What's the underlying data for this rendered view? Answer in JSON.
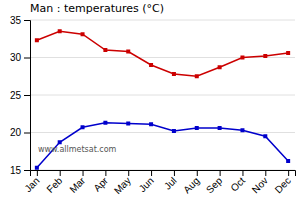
{
  "chart_data": {
    "type": "line",
    "title": "Man : temperatures (°C)",
    "categories": [
      "Jan",
      "Feb",
      "Mar",
      "Apr",
      "May",
      "Jun",
      "Jul",
      "Aug",
      "Sep",
      "Oct",
      "Nov",
      "Dec"
    ],
    "series": [
      {
        "color": "#cc0000",
        "marker": "square",
        "values": [
          32.3,
          33.5,
          33.1,
          31.0,
          30.8,
          29.0,
          27.8,
          27.5,
          28.7,
          30.0,
          30.2,
          30.6
        ]
      },
      {
        "color": "#0000cc",
        "marker": "square",
        "values": [
          15.3,
          18.7,
          20.7,
          21.3,
          21.2,
          21.1,
          20.2,
          20.6,
          20.6,
          20.3,
          19.5,
          16.2
        ]
      }
    ],
    "ylim": [
      15,
      35
    ],
    "yticks": [
      15,
      20,
      25,
      30,
      35
    ],
    "grid": true,
    "annotation": "www.allmetsat.com"
  }
}
